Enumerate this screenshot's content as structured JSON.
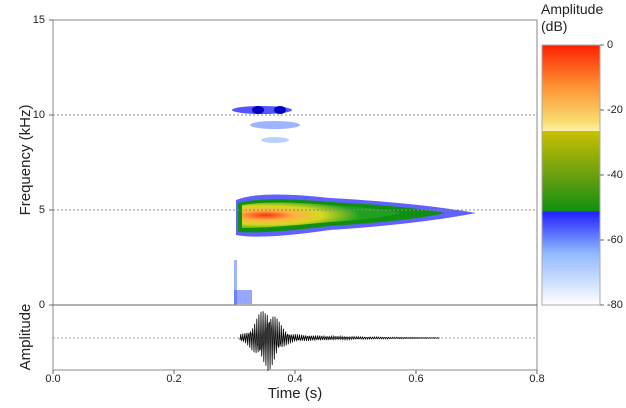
{
  "chart_data": {
    "type": "spectrogram",
    "xlabel": "Time (s)",
    "ylabel": "Frequency (kHz)",
    "waveform_ylabel": "Amplitude",
    "xlim": [
      0,
      0.8
    ],
    "xticks": [
      {
        "value": 0,
        "label": "0.0"
      },
      0.2,
      0.4,
      0.6,
      0.8
    ],
    "ylim": [
      0,
      15
    ],
    "yticks": [
      0,
      5,
      10,
      15
    ],
    "grid": true,
    "colorbar": {
      "label": "Amplitude (dB)",
      "lim": [
        -80,
        0
      ],
      "ticks": [
        0,
        -20,
        -40,
        -60,
        -80
      ]
    }
  }
}
